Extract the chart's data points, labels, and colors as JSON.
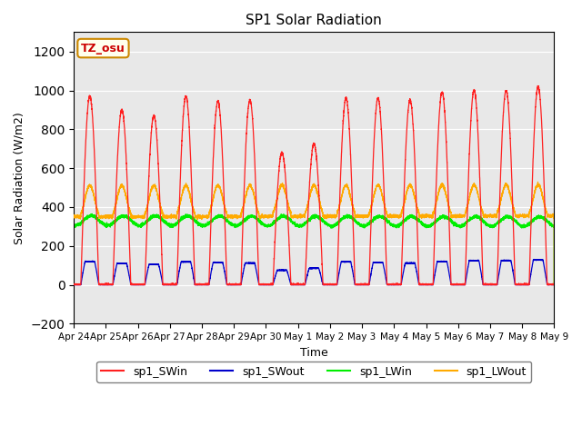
{
  "title": "SP1 Solar Radiation",
  "ylabel": "Solar Radiation (W/m2)",
  "xlabel": "Time",
  "ylim": [
    -200,
    1300
  ],
  "yticks": [
    -200,
    0,
    200,
    400,
    600,
    800,
    1000,
    1200
  ],
  "xtick_labels": [
    "Apr 24",
    "Apr 25",
    "Apr 26",
    "Apr 27",
    "Apr 28",
    "Apr 29",
    "Apr 30",
    "May 1",
    "May 2",
    "May 3",
    "May 4",
    "May 5",
    "May 6",
    "May 7",
    "May 8",
    "May 9"
  ],
  "colors": {
    "SWin": "#ff2020",
    "SWout": "#0000cc",
    "LWin": "#00ee00",
    "LWout": "#ffaa00"
  },
  "bg_color": "#e8e8e8",
  "annotation_text": "TZ_osu",
  "annotation_color": "#cc0000",
  "annotation_bg": "#ffffee",
  "annotation_border": "#cc8800",
  "sw_peaks": [
    970,
    900,
    870,
    970,
    945,
    950,
    680,
    725,
    960,
    960,
    950,
    990,
    1000,
    1000,
    1020
  ],
  "swout_peaks": [
    120,
    110,
    105,
    118,
    115,
    112,
    75,
    85,
    118,
    115,
    112,
    120,
    125,
    125,
    128
  ],
  "legend_labels": [
    "sp1_SWin",
    "sp1_SWout",
    "sp1_LWin",
    "sp1_LWout"
  ],
  "num_days": 15,
  "ppd": 480
}
